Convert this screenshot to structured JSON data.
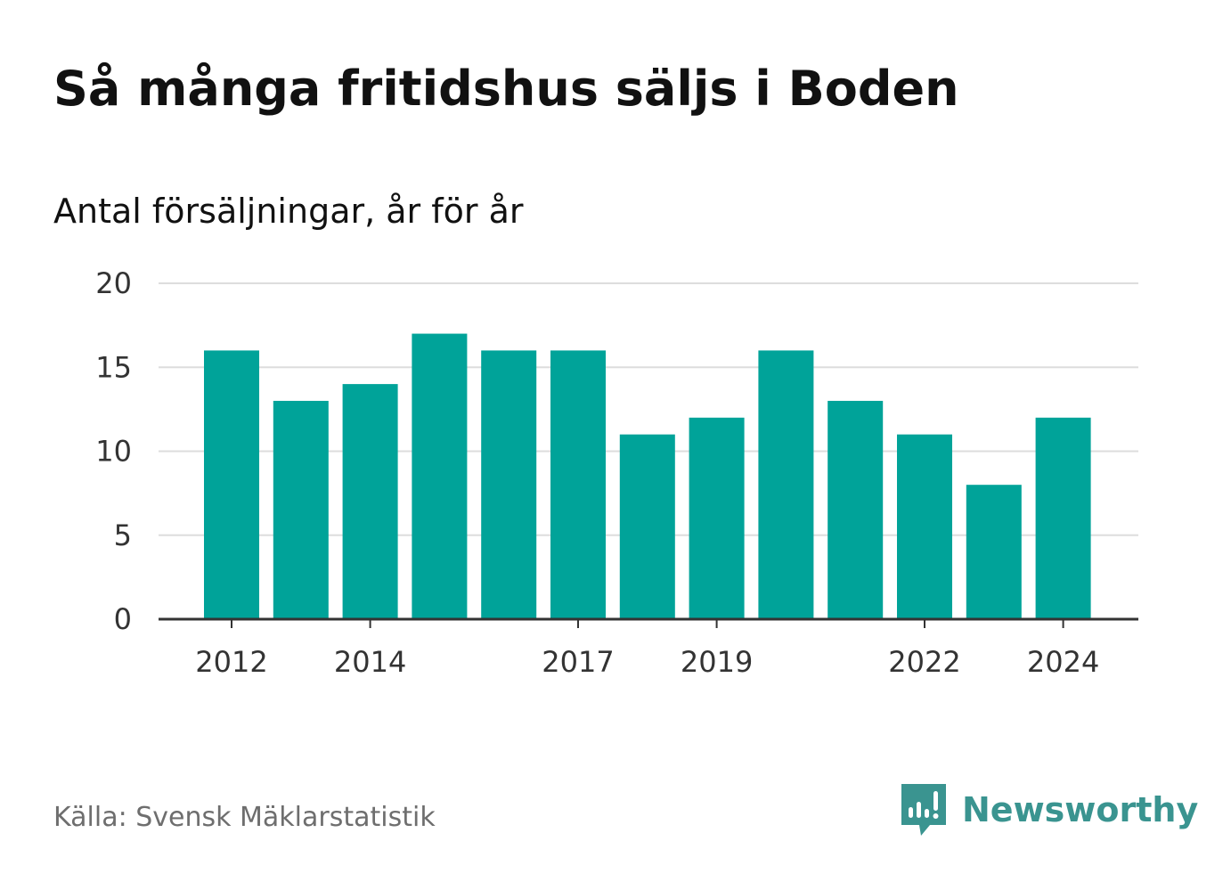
{
  "header": {
    "title": "Så många fritidshus säljs i Boden",
    "subtitle": "Antal försäljningar, år för år"
  },
  "footer": {
    "source": "Källa: Svensk Mäklarstatistik",
    "brand": "Newsworthy",
    "brand_icon": "newsworthy-logo-icon"
  },
  "colors": {
    "bar": "#00a399",
    "grid": "#dddddd",
    "axis": "#333333",
    "brand": "#3a9490"
  },
  "chart_data": {
    "type": "bar",
    "title": "Så många fritidshus säljs i Boden",
    "subtitle": "Antal försäljningar, år för år",
    "categories": [
      "2012",
      "2013",
      "2014",
      "2015",
      "2016",
      "2017",
      "2018",
      "2019",
      "2020",
      "2021",
      "2022",
      "2023",
      "2024"
    ],
    "values": [
      16,
      13,
      14,
      17,
      16,
      16,
      11,
      12,
      16,
      13,
      11,
      8,
      12
    ],
    "x_tick_labels": [
      "2012",
      "2014",
      "2017",
      "2019",
      "2022",
      "2024"
    ],
    "y_ticks": [
      0,
      5,
      10,
      15,
      20
    ],
    "ylim": [
      0,
      20
    ],
    "xlabel": "",
    "ylabel": "",
    "grid": true,
    "legend": "none"
  }
}
